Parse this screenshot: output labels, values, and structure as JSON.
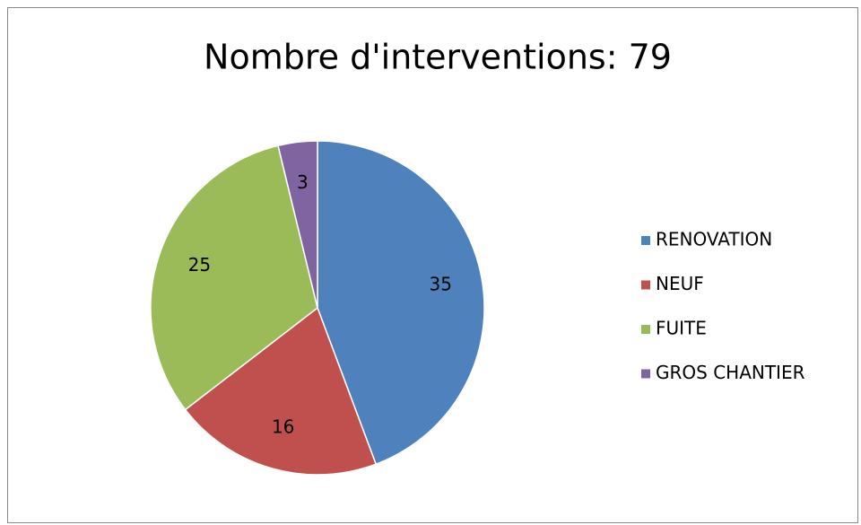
{
  "chart_data": {
    "type": "pie",
    "title": "Nombre d'interventions: 79",
    "categories": [
      "RENOVATION",
      "NEUF",
      "FUITE",
      "GROS CHANTIER"
    ],
    "values": [
      35,
      16,
      25,
      3
    ],
    "colors": [
      "#4f81bd",
      "#c0504d",
      "#9bbb59",
      "#8064a2"
    ],
    "legend": "right"
  }
}
